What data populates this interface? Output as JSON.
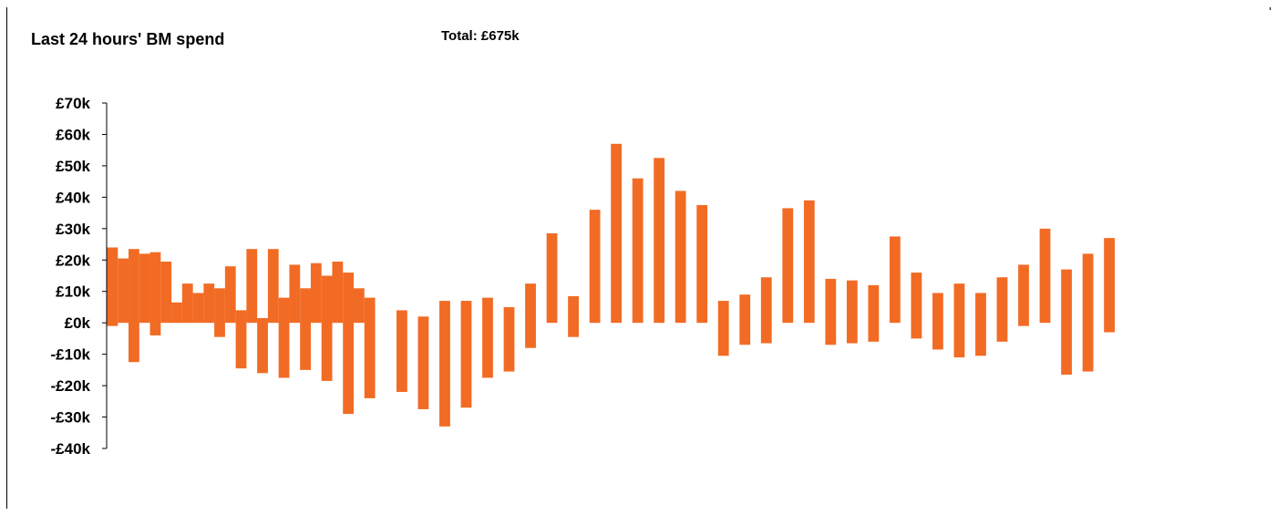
{
  "header": {
    "title": "Last 24 hours' BM spend",
    "total": "Total: £675k"
  },
  "colors": {
    "bar": "#f26b24",
    "axis": "#000000"
  },
  "chart_data": {
    "type": "bar",
    "title": "Last 24 hours' BM spend",
    "xlabel": "",
    "ylabel": "",
    "ylim": [
      -40,
      70
    ],
    "yticks": [
      70,
      60,
      50,
      40,
      30,
      20,
      10,
      0,
      -10,
      -20,
      -30,
      -40
    ],
    "ytick_labels": [
      "£70k",
      "£60k",
      "£50k",
      "£40k",
      "£30k",
      "£20k",
      "£10k",
      "£0k",
      "-£10k",
      "-£20k",
      "-£30k",
      "-£40k"
    ],
    "unit": "£k",
    "grid": false,
    "legend": "none",
    "periods": [
      {
        "top": 24,
        "bottom": -1
      },
      {
        "top": 20.5,
        "bottom": 0
      },
      {
        "top": 23.5,
        "bottom": -12.5
      },
      {
        "top": 22,
        "bottom": 0
      },
      {
        "top": 22.5,
        "bottom": -4
      },
      {
        "top": 19.5,
        "bottom": 0
      },
      {
        "top": 6.5,
        "bottom": 0
      },
      {
        "top": 12.5,
        "bottom": 0
      },
      {
        "top": 9.5,
        "bottom": 0
      },
      {
        "top": 12.5,
        "bottom": 0
      },
      {
        "top": 11,
        "bottom": -4.5
      },
      {
        "top": 18,
        "bottom": 0
      },
      {
        "top": 4,
        "bottom": -14.5
      },
      {
        "top": 23.5,
        "bottom": 0
      },
      {
        "top": 1.5,
        "bottom": -16
      },
      {
        "top": 23.5,
        "bottom": 0
      },
      {
        "top": 8,
        "bottom": -17.5
      },
      {
        "top": 18.5,
        "bottom": 0
      },
      {
        "top": 11,
        "bottom": -15
      },
      {
        "top": 19,
        "bottom": 0
      },
      {
        "top": 15,
        "bottom": -18.5
      },
      {
        "top": 19.5,
        "bottom": 0
      },
      {
        "top": 16,
        "bottom": -29
      },
      {
        "top": 11,
        "bottom": 0
      },
      {
        "top": 8,
        "bottom": -24
      },
      {
        "top": 0,
        "bottom": 0
      },
      {
        "top": 0,
        "bottom": 0
      },
      {
        "top": 4,
        "bottom": -22
      },
      {
        "top": 0,
        "bottom": 0
      },
      {
        "top": 2,
        "bottom": -27.5
      },
      {
        "top": 0,
        "bottom": 0
      },
      {
        "top": 7,
        "bottom": -33
      },
      {
        "top": 0,
        "bottom": 0
      },
      {
        "top": 7,
        "bottom": -27
      },
      {
        "top": 0,
        "bottom": 0
      },
      {
        "top": 8,
        "bottom": -17.5
      },
      {
        "top": 0,
        "bottom": 0
      },
      {
        "top": 5,
        "bottom": -15.5
      },
      {
        "top": 0,
        "bottom": 0
      },
      {
        "top": 12.5,
        "bottom": -8
      },
      {
        "top": 0,
        "bottom": 0
      },
      {
        "top": 28.5,
        "bottom": 0
      },
      {
        "top": 0,
        "bottom": 0
      },
      {
        "top": 8.5,
        "bottom": -4.5
      },
      {
        "top": 0,
        "bottom": 0
      },
      {
        "top": 36,
        "bottom": 0
      },
      {
        "top": 0,
        "bottom": 0
      },
      {
        "top": 57,
        "bottom": 0
      },
      {
        "top": 0,
        "bottom": 0
      },
      {
        "top": 46,
        "bottom": 0
      },
      {
        "top": 0,
        "bottom": 0
      },
      {
        "top": 52.5,
        "bottom": 0
      },
      {
        "top": 0,
        "bottom": 0
      },
      {
        "top": 42,
        "bottom": 0
      },
      {
        "top": 0,
        "bottom": 0
      },
      {
        "top": 37.5,
        "bottom": 0
      },
      {
        "top": 0,
        "bottom": 0
      },
      {
        "top": 7,
        "bottom": -10.5
      },
      {
        "top": 0,
        "bottom": 0
      },
      {
        "top": 9,
        "bottom": -7
      },
      {
        "top": 0,
        "bottom": 0
      },
      {
        "top": 14.5,
        "bottom": -6.5
      },
      {
        "top": 0,
        "bottom": 0
      },
      {
        "top": 36.5,
        "bottom": 0
      },
      {
        "top": 0,
        "bottom": 0
      },
      {
        "top": 39,
        "bottom": 0
      },
      {
        "top": 0,
        "bottom": 0
      },
      {
        "top": 14,
        "bottom": -7
      },
      {
        "top": 0,
        "bottom": 0
      },
      {
        "top": 13.5,
        "bottom": -6.5
      },
      {
        "top": 0,
        "bottom": 0
      },
      {
        "top": 12,
        "bottom": -6
      },
      {
        "top": 0,
        "bottom": 0
      },
      {
        "top": 27.5,
        "bottom": 0
      },
      {
        "top": 0,
        "bottom": 0
      },
      {
        "top": 16,
        "bottom": -5
      },
      {
        "top": 0,
        "bottom": 0
      },
      {
        "top": 9.5,
        "bottom": -8.5
      },
      {
        "top": 0,
        "bottom": 0
      },
      {
        "top": 12.5,
        "bottom": -11
      },
      {
        "top": 0,
        "bottom": 0
      },
      {
        "top": 9.5,
        "bottom": -10.5
      },
      {
        "top": 0,
        "bottom": 0
      },
      {
        "top": 14.5,
        "bottom": -6
      },
      {
        "top": 0,
        "bottom": 0
      },
      {
        "top": 18.5,
        "bottom": -1
      },
      {
        "top": 0,
        "bottom": 0
      },
      {
        "top": 30,
        "bottom": 0
      },
      {
        "top": 0,
        "bottom": 0
      },
      {
        "top": 17,
        "bottom": -16.5
      },
      {
        "top": 0,
        "bottom": 0
      },
      {
        "top": 22,
        "bottom": -15.5
      },
      {
        "top": 0,
        "bottom": 0
      },
      {
        "top": 27,
        "bottom": -3
      }
    ]
  }
}
